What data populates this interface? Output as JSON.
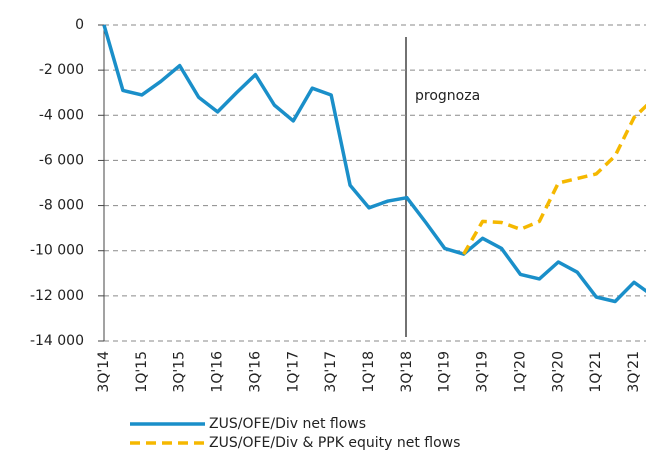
{
  "chart_data": {
    "type": "line",
    "categories": [
      "3Q'14",
      null,
      "1Q'15",
      null,
      "3Q'15",
      null,
      "1Q'16",
      null,
      "3Q'16",
      null,
      "1Q'17",
      null,
      "3Q'17",
      null,
      "1Q'18",
      null,
      "3Q'18",
      null,
      "1Q'19",
      null,
      "3Q'19",
      null,
      "1Q'20",
      null,
      "3Q'20",
      null,
      "1Q'21",
      null,
      "3Q'21",
      null
    ],
    "series": [
      {
        "name": "ZUS/OFE/Div net flows",
        "color": "#1a8fc9",
        "style": "solid",
        "values": [
          0,
          -2900,
          -3100,
          -2500,
          -1800,
          -3200,
          -3850,
          -3000,
          -2200,
          -3550,
          -4250,
          -2800,
          -3100,
          -7100,
          -8100,
          -7800,
          -7650,
          -8750,
          -9900,
          -10150,
          -9450,
          -9900,
          -11050,
          -11250,
          -10500,
          -10950,
          -12050,
          -12250,
          -11400,
          -12000
        ]
      },
      {
        "name": "ZUS/OFE/Div & PPK equity net flows",
        "color": "#f5b800",
        "style": "dashed",
        "values": [
          null,
          null,
          null,
          null,
          null,
          null,
          null,
          null,
          null,
          null,
          null,
          null,
          null,
          null,
          null,
          null,
          null,
          null,
          null,
          -10150,
          -8700,
          -8750,
          -9050,
          -8700,
          -7000,
          -6800,
          -6600,
          -5800,
          -4100,
          -3300
        ]
      }
    ],
    "ylim": [
      -14000,
      0
    ],
    "yticks": [
      {
        "value": -14000,
        "label": "-14 000"
      },
      {
        "value": -12000,
        "label": "-12 000"
      },
      {
        "value": -10000,
        "label": "-10 000"
      },
      {
        "value": -8000,
        "label": "-8 000"
      },
      {
        "value": -6000,
        "label": "-6 000"
      },
      {
        "value": -4000,
        "label": "-4 000"
      },
      {
        "value": -2000,
        "label": "-2 000"
      },
      0
    ],
    "grid": true,
    "annotations": [
      "prognoza"
    ],
    "legend": "bottom"
  }
}
